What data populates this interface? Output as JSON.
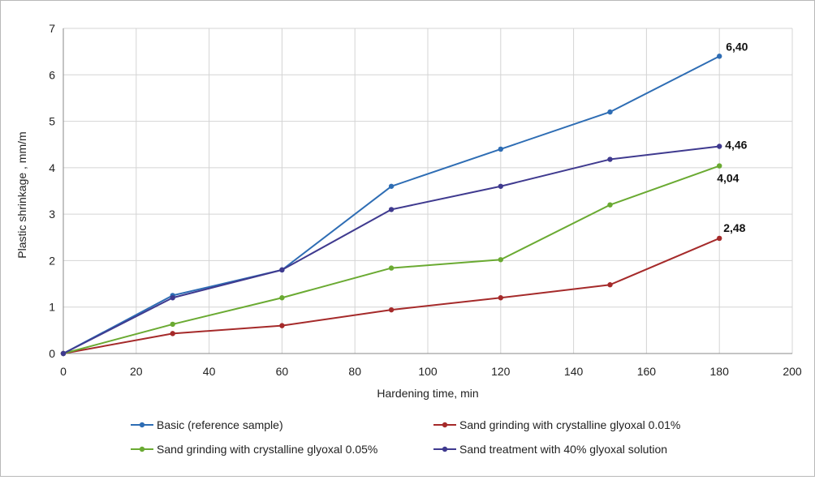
{
  "chart_data": {
    "type": "line",
    "title": "",
    "xlabel": "Hardening time, min",
    "ylabel": "Plastic shrinkage , mm/m",
    "xlim": [
      0,
      200
    ],
    "ylim": [
      0,
      7
    ],
    "xticks": [
      "0",
      "20",
      "40",
      "60",
      "80",
      "100",
      "120",
      "140",
      "160",
      "180",
      "200"
    ],
    "yticks": [
      "0",
      "1",
      "2",
      "3",
      "4",
      "5",
      "6",
      "7"
    ],
    "grid": true,
    "legend_position": "bottom",
    "x": [
      0,
      30,
      60,
      90,
      120,
      150,
      180
    ],
    "series": [
      {
        "name": "Basic (reference sample)",
        "color": "#2e6db4",
        "values": [
          0,
          1.25,
          1.8,
          3.6,
          4.4,
          5.2,
          6.4
        ],
        "end_label": "6,40"
      },
      {
        "name": "Sand grinding with crystalline glyoxal 0.01%",
        "color": "#a52a2a",
        "values": [
          0,
          0.43,
          0.6,
          0.94,
          1.2,
          1.48,
          2.48
        ],
        "end_label": "2,48"
      },
      {
        "name": "Sand grinding with crystalline glyoxal 0.05%",
        "color": "#6aaa32",
        "values": [
          0,
          0.63,
          1.2,
          1.84,
          2.02,
          3.2,
          4.04
        ],
        "end_label": "4,04"
      },
      {
        "name": "Sand treatment with 40% glyoxal solution",
        "color": "#3f3a8f",
        "values": [
          0,
          1.2,
          1.8,
          3.1,
          3.6,
          4.18,
          4.46
        ],
        "end_label": "4,46"
      }
    ]
  }
}
